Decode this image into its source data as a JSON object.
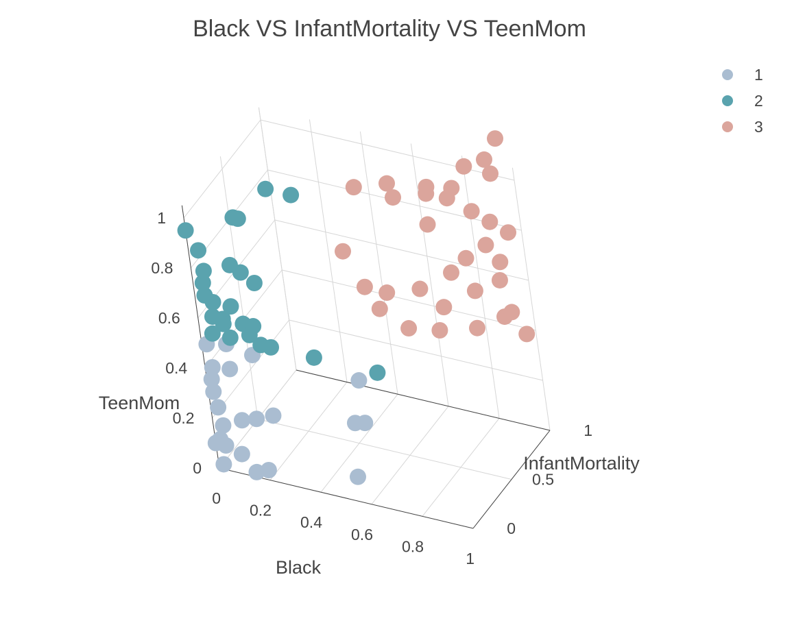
{
  "chart_data": {
    "type": "scatter3d",
    "title": "Black VS InfantMortality VS TeenMom",
    "axes": {
      "x": {
        "label": "Black",
        "range": [
          0,
          1
        ],
        "ticks": [
          "0",
          "0.2",
          "0.4",
          "0.6",
          "0.8",
          "1"
        ]
      },
      "y": {
        "label": "InfantMortality",
        "range": [
          0,
          1
        ],
        "ticks": [
          "0",
          "0.5",
          "1"
        ]
      },
      "z": {
        "label": "TeenMom",
        "range": [
          0,
          1
        ],
        "ticks": [
          "0",
          "0.2",
          "0.4",
          "0.6",
          "0.8",
          "1"
        ]
      }
    },
    "legend": {
      "position": "top-right",
      "items": [
        "1",
        "2",
        "3"
      ]
    },
    "series": [
      {
        "name": "1",
        "color": "#aabdd1",
        "points": [
          [
            0.02,
            0.0,
            0.5
          ],
          [
            0.03,
            0.0,
            0.41
          ],
          [
            0.02,
            0.0,
            0.36
          ],
          [
            0.02,
            0.0,
            0.31
          ],
          [
            0.03,
            0.0,
            0.25
          ],
          [
            0.04,
            0.0,
            0.18
          ],
          [
            0.02,
            0.0,
            0.12
          ],
          [
            0.0,
            0.0,
            0.1
          ],
          [
            0.04,
            0.0,
            0.1
          ],
          [
            0.02,
            0.0,
            0.02
          ],
          [
            0.1,
            0.0,
            0.08
          ],
          [
            0.15,
            0.0,
            0.02
          ],
          [
            0.2,
            0.0,
            0.04
          ],
          [
            0.12,
            0.0,
            0.22
          ],
          [
            0.18,
            0.0,
            0.24
          ],
          [
            0.25,
            0.0,
            0.27
          ],
          [
            0.1,
            0.0,
            0.42
          ],
          [
            0.1,
            0.0,
            0.52
          ],
          [
            0.2,
            0.0,
            0.5
          ],
          [
            0.56,
            0.0,
            0.1
          ],
          [
            0.58,
            0.0,
            0.32
          ],
          [
            0.62,
            0.0,
            0.33
          ],
          [
            0.62,
            0.0,
            0.5
          ]
        ]
      },
      {
        "name": "2",
        "color": "#5aa3ae",
        "points": [
          [
            0.0,
            0.0,
            0.95
          ],
          [
            0.04,
            0.0,
            0.88
          ],
          [
            0.05,
            0.0,
            0.8
          ],
          [
            0.04,
            0.0,
            0.75
          ],
          [
            0.04,
            0.0,
            0.7
          ],
          [
            0.07,
            0.0,
            0.68
          ],
          [
            0.06,
            0.0,
            0.62
          ],
          [
            0.1,
            0.0,
            0.62
          ],
          [
            0.14,
            0.0,
            0.68
          ],
          [
            0.18,
            0.0,
            0.62
          ],
          [
            0.2,
            0.0,
            0.58
          ],
          [
            0.05,
            0.0,
            0.55
          ],
          [
            0.24,
            0.0,
            0.55
          ],
          [
            0.28,
            0.0,
            0.55
          ],
          [
            0.16,
            0.0,
            0.85
          ],
          [
            0.2,
            0.0,
            0.83
          ],
          [
            0.2,
            0.0,
            1.05
          ],
          [
            0.22,
            0.0,
            1.05
          ],
          [
            0.35,
            0.0,
            1.2
          ],
          [
            0.45,
            0.0,
            1.2
          ],
          [
            0.25,
            0.0,
            0.8
          ],
          [
            0.45,
            0.0,
            0.55
          ],
          [
            0.7,
            0.0,
            0.55
          ],
          [
            0.12,
            0.0,
            0.55
          ],
          [
            0.1,
            0.0,
            0.6
          ],
          [
            0.22,
            0.0,
            0.62
          ]
        ]
      },
      {
        "name": "3",
        "color": "#dba59c",
        "points": [
          [
            0.6,
            0.3,
            1.15
          ],
          [
            0.7,
            0.4,
            1.15
          ],
          [
            0.68,
            0.5,
            1.05
          ],
          [
            0.78,
            0.6,
            1.05
          ],
          [
            0.84,
            0.45,
            1.15
          ],
          [
            0.9,
            0.5,
            1.1
          ],
          [
            0.95,
            0.6,
            1.2
          ],
          [
            1.0,
            0.7,
            1.2
          ],
          [
            1.02,
            0.8,
            1.25
          ],
          [
            0.85,
            0.7,
            1.05
          ],
          [
            0.98,
            0.8,
            1.1
          ],
          [
            0.9,
            0.75,
            0.95
          ],
          [
            0.95,
            0.8,
            0.9
          ],
          [
            1.0,
            0.85,
            0.85
          ],
          [
            0.92,
            0.8,
            0.8
          ],
          [
            0.85,
            0.75,
            0.75
          ],
          [
            0.95,
            0.85,
            0.72
          ],
          [
            0.8,
            0.7,
            0.7
          ],
          [
            0.7,
            0.6,
            0.65
          ],
          [
            0.6,
            0.5,
            0.65
          ],
          [
            0.58,
            0.45,
            0.6
          ],
          [
            0.75,
            0.7,
            0.55
          ],
          [
            0.85,
            0.8,
            0.6
          ],
          [
            0.92,
            0.9,
            0.62
          ],
          [
            0.95,
            0.9,
            0.5
          ],
          [
            0.9,
            0.95,
            0.45
          ],
          [
            0.8,
            0.9,
            0.4
          ],
          [
            0.72,
            0.7,
            0.45
          ],
          [
            0.65,
            0.55,
            0.5
          ],
          [
            0.55,
            0.4,
            0.7
          ],
          [
            0.5,
            0.35,
            0.85
          ],
          [
            0.98,
            0.95,
            0.4
          ],
          [
            0.75,
            0.65,
            0.9
          ]
        ]
      }
    ]
  }
}
